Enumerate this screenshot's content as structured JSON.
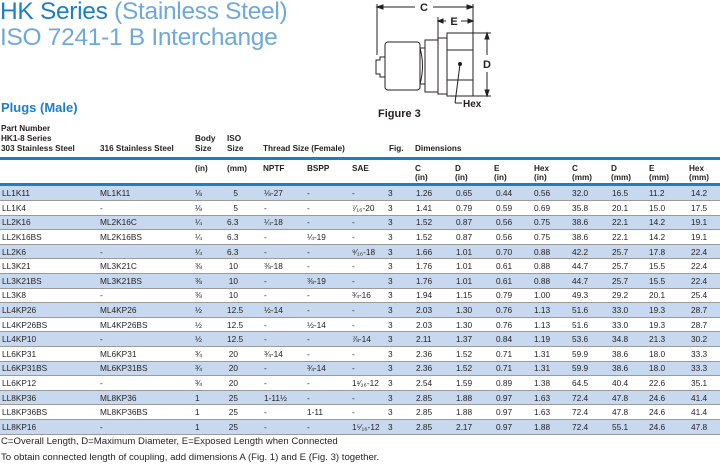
{
  "title": {
    "series": "HK Series",
    "material": "(Stainless Steel)",
    "line2": "ISO 7241-1 B Interchange"
  },
  "subtitle": "Plugs (Male)",
  "figure": {
    "caption": "Figure 3",
    "labels": {
      "c": "C",
      "e": "E",
      "d": "D",
      "hex": "Hex"
    }
  },
  "header": {
    "part_number": "Part Number",
    "series": "HK1-8 Series",
    "col303": "303 Stainless Steel",
    "col316": "316 Stainless Steel",
    "body": "Body",
    "body2": "Size",
    "iso": "ISO",
    "iso2": "Size",
    "thread": "Thread Size (Female)",
    "fig": "Fig.",
    "dimensions": "Dimensions",
    "units": {
      "body": "(in)",
      "iso": "(mm)",
      "nptf": "NPTF",
      "bspp": "BSPP",
      "sae": "SAE",
      "c_in": "C",
      "c_in_u": "(in)",
      "d_in": "D",
      "d_in_u": "(in)",
      "e_in": "E",
      "e_in_u": "(in)",
      "hex_in": "Hex",
      "hex_in_u": "(in)",
      "c_mm": "C",
      "c_mm_u": "(mm)",
      "d_mm": "D",
      "d_mm_u": "(mm)",
      "e_mm": "E",
      "e_mm_u": "(mm)",
      "hex_mm": "Hex",
      "hex_mm_u": "(mm)"
    }
  },
  "rows": [
    [
      "LL1K11",
      "ML1K11",
      "⅛",
      "5",
      "⅛-27",
      "-",
      "-",
      "3",
      "1.26",
      "0.65",
      "0.44",
      "0.56",
      "32.0",
      "16.5",
      "11.2",
      "14.2"
    ],
    [
      "LL1K4",
      "-",
      "⅛",
      "5",
      "-",
      "-",
      "⁷⁄₁₆-20",
      "3",
      "1.41",
      "0.79",
      "0.59",
      "0.69",
      "35.8",
      "20.1",
      "15.0",
      "17.5"
    ],
    [
      "LL2K16",
      "ML2K16C",
      "¼",
      "6.3",
      "¼-18",
      "-",
      "-",
      "3",
      "1.52",
      "0.87",
      "0.56",
      "0.75",
      "38.6",
      "22.1",
      "14.2",
      "19.1"
    ],
    [
      "LL2K16BS",
      "ML2K16BS",
      "¼",
      "6.3",
      "-",
      "¼-19",
      "-",
      "3",
      "1.52",
      "0.87",
      "0.56",
      "0.75",
      "38.6",
      "22.1",
      "14.2",
      "19.1"
    ],
    [
      "LL2K6",
      "-",
      "¼",
      "6.3",
      "-",
      "-",
      "⁹⁄₁₆-18",
      "3",
      "1.66",
      "1.01",
      "0.70",
      "0.88",
      "42.2",
      "25.7",
      "17.8",
      "22.4"
    ],
    [
      "LL3K21",
      "ML3K21C",
      "⅜",
      "10",
      "⅜-18",
      "-",
      "-",
      "3",
      "1.76",
      "1.01",
      "0.61",
      "0.88",
      "44.7",
      "25.7",
      "15.5",
      "22.4"
    ],
    [
      "LL3K21BS",
      "ML3K21BS",
      "⅜",
      "10",
      "-",
      "⅜-19",
      "-",
      "3",
      "1.76",
      "1.01",
      "0.61",
      "0.88",
      "44.7",
      "25.7",
      "15.5",
      "22.4"
    ],
    [
      "LL3K8",
      "-",
      "⅜",
      "10",
      "-",
      "-",
      "¾-16",
      "3",
      "1.94",
      "1.15",
      "0.79",
      "1.00",
      "49.3",
      "29.2",
      "20.1",
      "25.4"
    ],
    [
      "LL4KP26",
      "ML4KP26",
      "½",
      "12.5",
      "½-14",
      "-",
      "-",
      "3",
      "2.03",
      "1.30",
      "0.76",
      "1.13",
      "51.6",
      "33.0",
      "19.3",
      "28.7"
    ],
    [
      "LL4KP26BS",
      "ML4KP26BS",
      "½",
      "12.5",
      "-",
      "½-14",
      "-",
      "3",
      "2.03",
      "1.30",
      "0.76",
      "1.13",
      "51.6",
      "33.0",
      "19.3",
      "28.7"
    ],
    [
      "LL4KP10",
      "-",
      "½",
      "12.5",
      "-",
      "-",
      "⅞-14",
      "3",
      "2.11",
      "1.37",
      "0.84",
      "1.19",
      "53.6",
      "34.8",
      "21.3",
      "30.2"
    ],
    [
      "LL6KP31",
      "ML6KP31",
      "¾",
      "20",
      "¾-14",
      "-",
      "-",
      "3",
      "2.36",
      "1.52",
      "0.71",
      "1.31",
      "59.9",
      "38.6",
      "18.0",
      "33.3"
    ],
    [
      "LL6KP31BS",
      "ML6KP31BS",
      "¾",
      "20",
      "-",
      "¾-14",
      "-",
      "3",
      "2.36",
      "1.52",
      "0.71",
      "1.31",
      "59.9",
      "38.6",
      "18.0",
      "33.3"
    ],
    [
      "LL6KP12",
      "-",
      "¾",
      "20",
      "-",
      "-",
      "1¹⁄₁₆-12",
      "3",
      "2.54",
      "1.59",
      "0.89",
      "1.38",
      "64.5",
      "40.4",
      "22.6",
      "35.1"
    ],
    [
      "LL8KP36",
      "ML8KP36",
      "1",
      "25",
      "1-11½",
      "-",
      "-",
      "3",
      "2.85",
      "1.88",
      "0.97",
      "1.63",
      "72.4",
      "47.8",
      "24.6",
      "41.4"
    ],
    [
      "LL8KP36BS",
      "ML8KP36BS",
      "1",
      "25",
      "-",
      "1-11",
      "-",
      "3",
      "2.85",
      "1.88",
      "0.97",
      "1.63",
      "72.4",
      "47.8",
      "24.6",
      "41.4"
    ],
    [
      "LL8KP16",
      "-",
      "1",
      "25",
      "-",
      "-",
      "1⁵⁄₁₆-12",
      "3",
      "2.85",
      "2.17",
      "0.97",
      "1.88",
      "72.4",
      "55.1",
      "24.6",
      "47.8"
    ]
  ],
  "footer": {
    "line1": "C=Overall Length, D=Maximum Diameter, E=Exposed Length when Connected",
    "line2": "To obtain connected length of coupling, add dimensions A (Fig. 1) and E (Fig. 3)  together."
  },
  "colors": {
    "brand": "#1d7ec6",
    "light": "#6fa8dc",
    "stripe": "#c8d8ee"
  }
}
